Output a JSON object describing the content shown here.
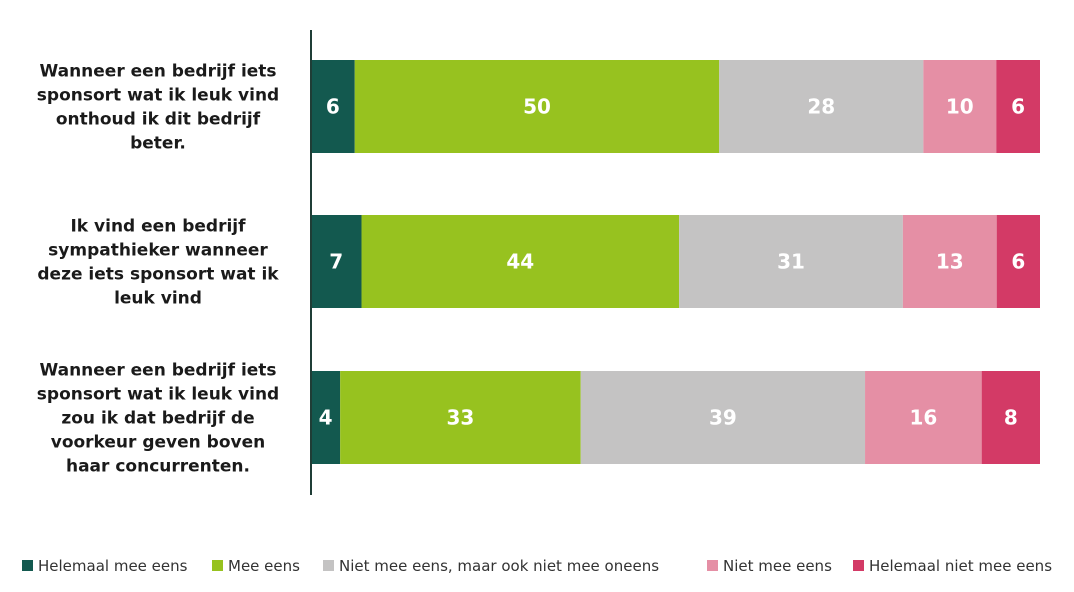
{
  "chart_data": {
    "type": "bar",
    "orientation": "horizontal",
    "stacked": true,
    "categories": [
      "Wanneer een bedrijf iets sponsort wat ik leuk vind onthoud ik dit bedrijf beter.",
      "Ik vind een bedrijf sympathieker wanneer deze iets sponsort wat ik leuk vind",
      "Wanneer een bedrijf iets sponsort wat ik leuk vind zou ik dat bedrijf de voorkeur geven boven haar concurrenten."
    ],
    "category_lines": [
      [
        "Wanneer een bedrijf iets",
        "sponsort wat ik leuk vind",
        "onthoud ik dit bedrijf",
        "beter."
      ],
      [
        "Ik vind een bedrijf",
        "sympathieker wanneer",
        "deze iets sponsort wat ik",
        "leuk vind"
      ],
      [
        "Wanneer een bedrijf iets",
        "sponsort wat ik leuk vind",
        "zou ik dat bedrijf de",
        "voorkeur geven boven",
        "haar concurrenten."
      ]
    ],
    "series": [
      {
        "name": "Helemaal mee eens",
        "color": "#13594f",
        "values": [
          6,
          7,
          4
        ]
      },
      {
        "name": "Mee eens",
        "color": "#97c21f",
        "values": [
          50,
          44,
          33
        ]
      },
      {
        "name": "Niet mee eens, maar ook niet mee oneens",
        "color": "#c4c3c3",
        "values": [
          28,
          31,
          39
        ]
      },
      {
        "name": "Niet mee eens",
        "color": "#e58fa5",
        "values": [
          10,
          13,
          16
        ]
      },
      {
        "name": "Helemaal niet mee eens",
        "color": "#d33a66",
        "values": [
          6,
          6,
          8
        ]
      }
    ],
    "data_labels": true,
    "grid": false,
    "legend_position": "bottom"
  }
}
